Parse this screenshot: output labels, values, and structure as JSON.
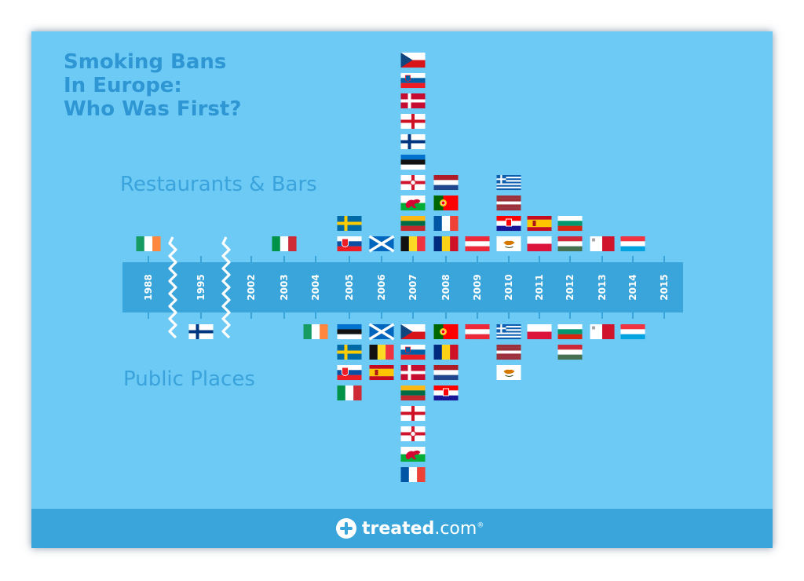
{
  "title_lines": [
    "Smoking Bans",
    "In Europe:",
    "Who Was First?"
  ],
  "labels": {
    "top": "Restaurants & Bars",
    "bottom": "Public Places"
  },
  "brand": {
    "name": "treated",
    "suffix": ".com",
    "mark": "®"
  },
  "colors": {
    "background": "#6dcaf5",
    "timeline_bar": "#3aa5da",
    "footer": "#3aa5da",
    "title": "#2f96d4",
    "label": "#3aa3dc",
    "axis_text": "#ffffff"
  },
  "chart_data": {
    "type": "timeline",
    "axis_years": [
      "1988",
      "1995",
      "2002",
      "2003",
      "2004",
      "2005",
      "2006",
      "2007",
      "2008",
      "2009",
      "2010",
      "2011",
      "2012",
      "2013",
      "2014",
      "2015"
    ],
    "axis_breaks": [
      "1988-1995",
      "1995-2002"
    ],
    "series": [
      {
        "name": "Restaurants & Bars",
        "entries": [
          {
            "year": "1988",
            "flags": [
              "ireland"
            ]
          },
          {
            "year": "2003",
            "flags": [
              "italy"
            ]
          },
          {
            "year": "2005",
            "flags": [
              "slovakia",
              "sweden"
            ]
          },
          {
            "year": "2006",
            "flags": [
              "scotland"
            ]
          },
          {
            "year": "2007",
            "flags": [
              "belgium",
              "lithuania",
              "wales",
              "northern-ireland",
              "estonia",
              "finland",
              "england",
              "denmark",
              "slovenia",
              "czech-republic"
            ]
          },
          {
            "year": "2008",
            "flags": [
              "romania",
              "france",
              "portugal",
              "netherlands"
            ]
          },
          {
            "year": "2009",
            "flags": [
              "austria"
            ]
          },
          {
            "year": "2010",
            "flags": [
              "cyprus",
              "croatia",
              "latvia",
              "greece"
            ]
          },
          {
            "year": "2011",
            "flags": [
              "poland",
              "spain"
            ]
          },
          {
            "year": "2012",
            "flags": [
              "hungary",
              "bulgaria"
            ]
          },
          {
            "year": "2013",
            "flags": [
              "malta"
            ]
          },
          {
            "year": "2014",
            "flags": [
              "luxembourg"
            ]
          }
        ]
      },
      {
        "name": "Public Places",
        "entries": [
          {
            "year": "1995",
            "flags": [
              "finland"
            ]
          },
          {
            "year": "2004",
            "flags": [
              "ireland"
            ]
          },
          {
            "year": "2005",
            "flags": [
              "estonia",
              "sweden",
              "slovakia",
              "italy"
            ]
          },
          {
            "year": "2006",
            "flags": [
              "scotland",
              "belgium",
              "spain"
            ]
          },
          {
            "year": "2007",
            "flags": [
              "czech-republic",
              "slovenia",
              "denmark",
              "lithuania",
              "england",
              "northern-ireland",
              "wales",
              "france"
            ]
          },
          {
            "year": "2008",
            "flags": [
              "portugal",
              "romania",
              "netherlands",
              "croatia"
            ]
          },
          {
            "year": "2009",
            "flags": [
              "austria"
            ]
          },
          {
            "year": "2010",
            "flags": [
              "greece",
              "latvia",
              "cyprus"
            ]
          },
          {
            "year": "2011",
            "flags": [
              "poland"
            ]
          },
          {
            "year": "2012",
            "flags": [
              "bulgaria",
              "hungary"
            ]
          },
          {
            "year": "2013",
            "flags": [
              "malta"
            ]
          },
          {
            "year": "2014",
            "flags": [
              "luxembourg"
            ]
          }
        ]
      }
    ]
  }
}
